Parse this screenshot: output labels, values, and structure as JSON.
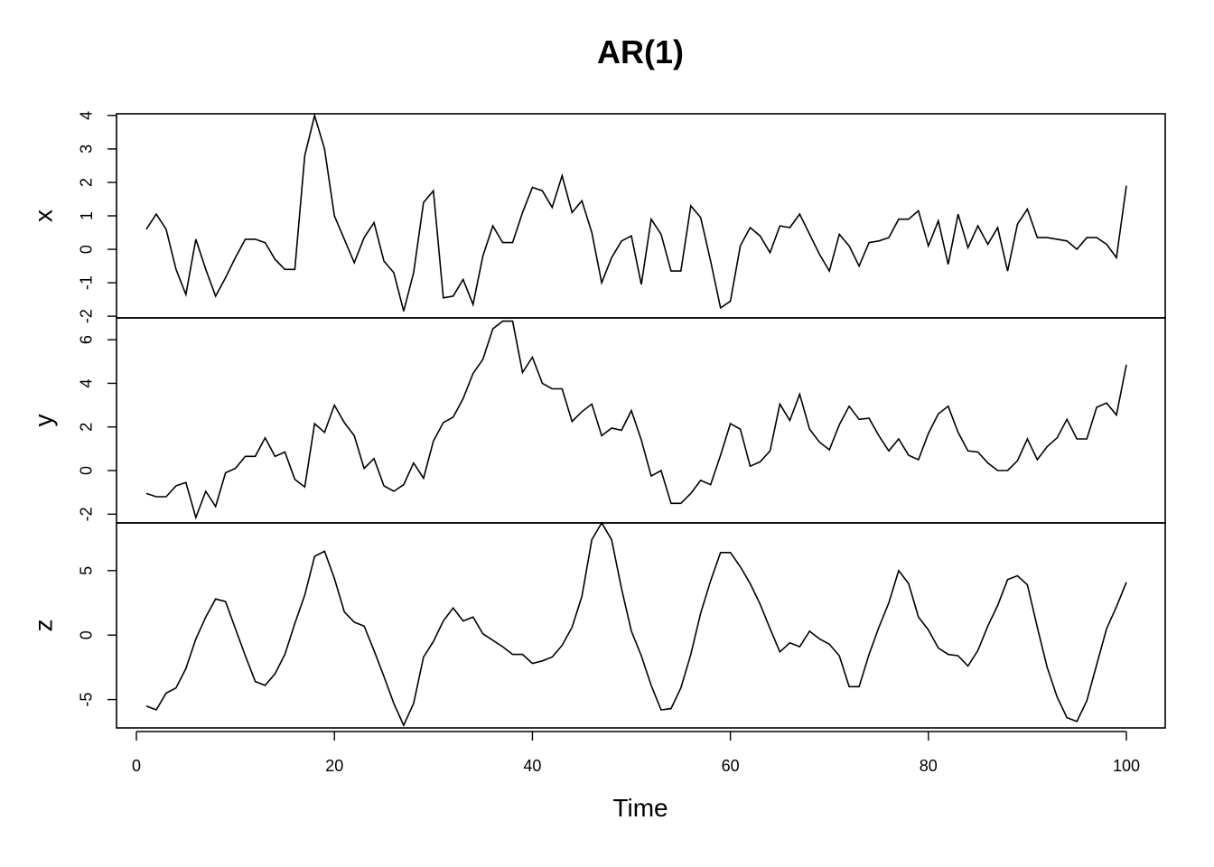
{
  "chart_data": {
    "type": "line",
    "title": "AR(1)",
    "xlabel": "Time",
    "xlim": [
      1,
      100
    ],
    "xticks": [
      0,
      20,
      40,
      60,
      80,
      100
    ],
    "grid": false,
    "legend": "none",
    "series": [
      {
        "name": "x",
        "yticks": [
          -2,
          -1,
          0,
          1,
          2,
          3,
          4
        ],
        "ylim": [
          -2.05,
          4.05
        ],
        "values": [
          0.6,
          1.05,
          0.6,
          -0.6,
          -1.35,
          0.3,
          -0.6,
          -1.4,
          -0.85,
          -0.25,
          0.3,
          0.3,
          0.2,
          -0.3,
          -0.6,
          -0.6,
          2.8,
          4.0,
          3.0,
          1.0,
          0.3,
          -0.4,
          0.35,
          0.8,
          -0.35,
          -0.7,
          -1.85,
          -0.7,
          1.4,
          1.75,
          -1.45,
          -1.4,
          -0.9,
          -1.65,
          -0.2,
          0.7,
          0.2,
          0.2,
          1.1,
          1.85,
          1.75,
          1.25,
          2.2,
          1.1,
          1.45,
          0.5,
          -1.0,
          -0.25,
          0.25,
          0.4,
          -1.05,
          0.9,
          0.45,
          -0.65,
          -0.65,
          1.3,
          0.95,
          -0.35,
          -1.75,
          -1.55,
          0.1,
          0.65,
          0.4,
          -0.1,
          0.7,
          0.65,
          1.05,
          0.45,
          -0.15,
          -0.65,
          0.45,
          0.1,
          -0.5,
          0.2,
          0.25,
          0.35,
          0.9,
          0.9,
          1.15,
          0.1,
          0.85,
          -0.45,
          1.05,
          0.05,
          0.7,
          0.15,
          0.65,
          -0.65,
          0.75,
          1.2,
          0.35,
          0.35,
          0.3,
          0.25,
          0.0,
          0.35,
          0.35,
          0.15,
          -0.25,
          1.9
        ]
      },
      {
        "name": "y",
        "yticks": [
          -2,
          0,
          2,
          4,
          6
        ],
        "ylim": [
          -2.4,
          7.0
        ],
        "values": [
          -1.05,
          -1.2,
          -1.2,
          -0.7,
          -0.55,
          -2.15,
          -0.95,
          -1.65,
          -0.1,
          0.1,
          0.65,
          0.65,
          1.5,
          0.65,
          0.85,
          -0.4,
          -0.75,
          2.15,
          1.75,
          3.0,
          2.2,
          1.6,
          0.1,
          0.55,
          -0.7,
          -0.95,
          -0.65,
          0.35,
          -0.35,
          1.35,
          2.2,
          2.45,
          3.3,
          4.45,
          5.1,
          6.5,
          6.85,
          6.85,
          4.5,
          5.2,
          4.0,
          3.75,
          3.75,
          2.25,
          2.7,
          3.05,
          1.6,
          1.95,
          1.85,
          2.75,
          1.4,
          -0.25,
          0.0,
          -1.5,
          -1.5,
          -1.05,
          -0.45,
          -0.65,
          0.7,
          2.15,
          1.9,
          0.2,
          0.4,
          0.9,
          3.05,
          2.3,
          3.5,
          1.9,
          1.3,
          0.95,
          2.1,
          2.95,
          2.35,
          2.4,
          1.6,
          0.9,
          1.45,
          0.7,
          0.5,
          1.7,
          2.6,
          2.95,
          1.75,
          0.9,
          0.85,
          0.35,
          0.0,
          0.0,
          0.45,
          1.45,
          0.5,
          1.1,
          1.5,
          2.35,
          1.45,
          1.45,
          2.9,
          3.1,
          2.55,
          4.85
        ]
      },
      {
        "name": "z",
        "yticks": [
          -5,
          0,
          5
        ],
        "ylim": [
          -7.2,
          8.7
        ],
        "values": [
          -5.5,
          -5.8,
          -4.5,
          -4.1,
          -2.6,
          -0.3,
          1.4,
          2.8,
          2.6,
          0.5,
          -1.6,
          -3.6,
          -3.9,
          -3.0,
          -1.5,
          0.9,
          3.1,
          6.1,
          6.5,
          4.4,
          1.8,
          1.0,
          0.7,
          -1.2,
          -3.2,
          -5.3,
          -7.0,
          -5.3,
          -1.7,
          -0.5,
          1.1,
          2.1,
          1.1,
          1.4,
          0.1,
          -0.4,
          -0.9,
          -1.5,
          -1.5,
          -2.2,
          -2.0,
          -1.7,
          -0.8,
          0.6,
          3.0,
          7.4,
          8.7,
          7.4,
          3.6,
          0.3,
          -1.6,
          -3.9,
          -5.8,
          -5.7,
          -4.1,
          -1.5,
          1.7,
          4.2,
          6.4,
          6.4,
          5.3,
          4.0,
          2.4,
          0.5,
          -1.3,
          -0.6,
          -0.9,
          0.3,
          -0.3,
          -0.7,
          -1.6,
          -4.0,
          -4.0,
          -1.5,
          0.6,
          2.5,
          5.0,
          4.0,
          1.4,
          0.4,
          -1.0,
          -1.5,
          -1.6,
          -2.4,
          -1.2,
          0.7,
          2.3,
          4.3,
          4.6,
          3.9,
          0.6,
          -2.5,
          -4.8,
          -6.4,
          -6.7,
          -5.1,
          -2.3,
          0.5,
          2.2,
          4.1
        ]
      }
    ]
  }
}
